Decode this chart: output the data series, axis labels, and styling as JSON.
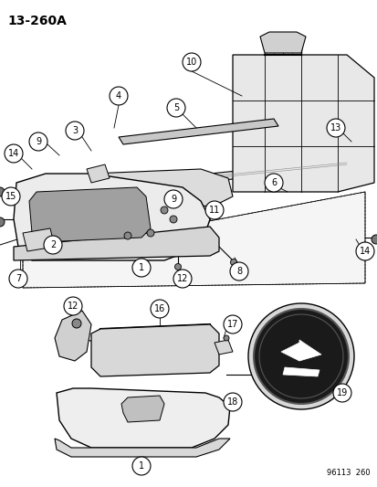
{
  "title_text": "13−260A",
  "footer_text": "96113  260",
  "background_color": "#ffffff",
  "line_color": "#000000",
  "fig_width": 4.14,
  "fig_height": 5.33,
  "dpi": 100
}
